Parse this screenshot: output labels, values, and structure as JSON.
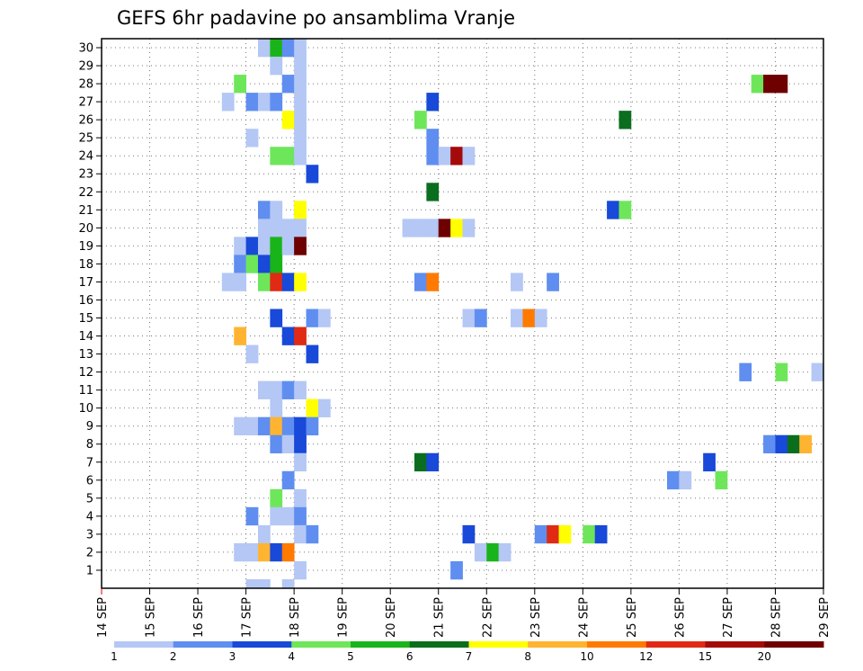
{
  "chart_data": {
    "type": "heatmap",
    "title": "GEFS 6hr padavine po ansamblima Vranje",
    "x_tick_labels": [
      "14 SEP",
      "15 SEP",
      "16 SEP",
      "17 SEP",
      "18 SEP",
      "19 SEP",
      "20 SEP",
      "21 SEP",
      "22 SEP",
      "23 SEP",
      "24 SEP",
      "25 SEP",
      "26 SEP",
      "27 SEP",
      "28 SEP",
      "29 SEP"
    ],
    "y_tick_labels": [
      "1",
      "2",
      "3",
      "4",
      "5",
      "6",
      "7",
      "8",
      "9",
      "10",
      "11",
      "12",
      "13",
      "14",
      "15",
      "16",
      "17",
      "18",
      "19",
      "20",
      "21",
      "22",
      "23",
      "24",
      "25",
      "26",
      "27",
      "28",
      "29",
      "30"
    ],
    "xlim_days": [
      14,
      29
    ],
    "ylim_members": [
      0,
      30
    ],
    "steps_per_day": 4,
    "grid": "dotted",
    "colorbar_labels": [
      "1",
      "2",
      "3",
      "4",
      "5",
      "6",
      "7",
      "8",
      "10",
      "12",
      "15",
      "20",
      ""
    ],
    "colorbar_colors": [
      "#b4c7f5",
      "#5f8ef0",
      "#1849d8",
      "#6ee65a",
      "#19b419",
      "#0a6e1e",
      "#ffff00",
      "#ffb431",
      "#ff7a00",
      "#e02a14",
      "#a50a0a",
      "#6e0000"
    ],
    "cells": [
      {
        "member": 30,
        "day": 17.25,
        "cls": 1
      },
      {
        "member": 30,
        "day": 17.5,
        "cls": 5
      },
      {
        "member": 30,
        "day": 17.75,
        "cls": 2
      },
      {
        "member": 30,
        "day": 18,
        "cls": 1
      },
      {
        "member": 29,
        "day": 17.5,
        "cls": 1
      },
      {
        "member": 29,
        "day": 18,
        "cls": 1
      },
      {
        "member": 28,
        "day": 16.75,
        "cls": 4
      },
      {
        "member": 28,
        "day": 17.75,
        "cls": 2
      },
      {
        "member": 28,
        "day": 18,
        "cls": 1
      },
      {
        "member": 28,
        "day": 27.5,
        "cls": 4
      },
      {
        "member": 28,
        "day": 27.75,
        "cls": 12
      },
      {
        "member": 28,
        "day": 28,
        "cls": 12
      },
      {
        "member": 27,
        "day": 16.5,
        "cls": 1
      },
      {
        "member": 27,
        "day": 17,
        "cls": 2
      },
      {
        "member": 27,
        "day": 17.25,
        "cls": 1
      },
      {
        "member": 27,
        "day": 17.5,
        "cls": 2
      },
      {
        "member": 27,
        "day": 18,
        "cls": 1
      },
      {
        "member": 27,
        "day": 20.75,
        "cls": 3
      },
      {
        "member": 26,
        "day": 17.75,
        "cls": 7
      },
      {
        "member": 26,
        "day": 18,
        "cls": 1
      },
      {
        "member": 26,
        "day": 20.5,
        "cls": 4
      },
      {
        "member": 26,
        "day": 24.75,
        "cls": 6
      },
      {
        "member": 25,
        "day": 17,
        "cls": 1
      },
      {
        "member": 25,
        "day": 18,
        "cls": 1
      },
      {
        "member": 25,
        "day": 20.75,
        "cls": 2
      },
      {
        "member": 24,
        "day": 17.5,
        "cls": 4
      },
      {
        "member": 24,
        "day": 17.75,
        "cls": 4
      },
      {
        "member": 24,
        "day": 18,
        "cls": 1
      },
      {
        "member": 24,
        "day": 20.75,
        "cls": 2
      },
      {
        "member": 24,
        "day": 21,
        "cls": 1
      },
      {
        "member": 24,
        "day": 21.25,
        "cls": 11
      },
      {
        "member": 24,
        "day": 21.5,
        "cls": 1
      },
      {
        "member": 23,
        "day": 18.25,
        "cls": 3
      },
      {
        "member": 22,
        "day": 20.75,
        "cls": 6
      },
      {
        "member": 21,
        "day": 17.25,
        "cls": 2
      },
      {
        "member": 21,
        "day": 17.5,
        "cls": 1
      },
      {
        "member": 21,
        "day": 18,
        "cls": 7
      },
      {
        "member": 21,
        "day": 24.5,
        "cls": 3
      },
      {
        "member": 21,
        "day": 24.75,
        "cls": 4
      },
      {
        "member": 20,
        "day": 17.25,
        "cls": 1
      },
      {
        "member": 20,
        "day": 17.5,
        "cls": 1
      },
      {
        "member": 20,
        "day": 17.75,
        "cls": 1
      },
      {
        "member": 20,
        "day": 18,
        "cls": 1
      },
      {
        "member": 20,
        "day": 20.25,
        "cls": 1
      },
      {
        "member": 20,
        "day": 20.5,
        "cls": 1
      },
      {
        "member": 20,
        "day": 20.75,
        "cls": 1
      },
      {
        "member": 20,
        "day": 21,
        "cls": 12
      },
      {
        "member": 20,
        "day": 21.25,
        "cls": 7
      },
      {
        "member": 20,
        "day": 21.5,
        "cls": 1
      },
      {
        "member": 19,
        "day": 16.75,
        "cls": 1
      },
      {
        "member": 19,
        "day": 17,
        "cls": 3
      },
      {
        "member": 19,
        "day": 17.25,
        "cls": 1
      },
      {
        "member": 19,
        "day": 17.5,
        "cls": 5
      },
      {
        "member": 19,
        "day": 17.75,
        "cls": 1
      },
      {
        "member": 19,
        "day": 18,
        "cls": 12
      },
      {
        "member": 18,
        "day": 16.75,
        "cls": 2
      },
      {
        "member": 18,
        "day": 17,
        "cls": 4
      },
      {
        "member": 18,
        "day": 17.25,
        "cls": 3
      },
      {
        "member": 18,
        "day": 17.5,
        "cls": 5
      },
      {
        "member": 17,
        "day": 16.5,
        "cls": 1
      },
      {
        "member": 17,
        "day": 16.75,
        "cls": 1
      },
      {
        "member": 17,
        "day": 17.25,
        "cls": 4
      },
      {
        "member": 17,
        "day": 17.5,
        "cls": 10
      },
      {
        "member": 17,
        "day": 17.75,
        "cls": 3
      },
      {
        "member": 17,
        "day": 18,
        "cls": 7
      },
      {
        "member": 17,
        "day": 20.5,
        "cls": 2
      },
      {
        "member": 17,
        "day": 20.75,
        "cls": 9
      },
      {
        "member": 17,
        "day": 22.5,
        "cls": 1
      },
      {
        "member": 17,
        "day": 23.25,
        "cls": 2
      },
      {
        "member": 15,
        "day": 17.5,
        "cls": 3
      },
      {
        "member": 15,
        "day": 18.25,
        "cls": 2
      },
      {
        "member": 15,
        "day": 18.5,
        "cls": 1
      },
      {
        "member": 15,
        "day": 21.5,
        "cls": 1
      },
      {
        "member": 15,
        "day": 21.75,
        "cls": 2
      },
      {
        "member": 15,
        "day": 22.5,
        "cls": 1
      },
      {
        "member": 15,
        "day": 22.75,
        "cls": 9
      },
      {
        "member": 15,
        "day": 23,
        "cls": 1
      },
      {
        "member": 14,
        "day": 16.75,
        "cls": 8
      },
      {
        "member": 14,
        "day": 17.75,
        "cls": 3
      },
      {
        "member": 14,
        "day": 18,
        "cls": 10
      },
      {
        "member": 13,
        "day": 17,
        "cls": 1
      },
      {
        "member": 13,
        "day": 18.25,
        "cls": 3
      },
      {
        "member": 12,
        "day": 27.25,
        "cls": 2
      },
      {
        "member": 12,
        "day": 28,
        "cls": 4
      },
      {
        "member": 12,
        "day": 28.75,
        "cls": 1
      },
      {
        "member": 11,
        "day": 17.25,
        "cls": 1
      },
      {
        "member": 11,
        "day": 17.5,
        "cls": 1
      },
      {
        "member": 11,
        "day": 17.75,
        "cls": 2
      },
      {
        "member": 11,
        "day": 18,
        "cls": 1
      },
      {
        "member": 10,
        "day": 17.5,
        "cls": 1
      },
      {
        "member": 10,
        "day": 18.25,
        "cls": 7
      },
      {
        "member": 10,
        "day": 18.5,
        "cls": 1
      },
      {
        "member": 9,
        "day": 16.75,
        "cls": 1
      },
      {
        "member": 9,
        "day": 17,
        "cls": 1
      },
      {
        "member": 9,
        "day": 17.25,
        "cls": 2
      },
      {
        "member": 9,
        "day": 17.5,
        "cls": 8
      },
      {
        "member": 9,
        "day": 17.75,
        "cls": 2
      },
      {
        "member": 9,
        "day": 18,
        "cls": 3
      },
      {
        "member": 9,
        "day": 18.25,
        "cls": 2
      },
      {
        "member": 8,
        "day": 17.5,
        "cls": 2
      },
      {
        "member": 8,
        "day": 17.75,
        "cls": 1
      },
      {
        "member": 8,
        "day": 18,
        "cls": 3
      },
      {
        "member": 8,
        "day": 27.75,
        "cls": 2
      },
      {
        "member": 8,
        "day": 28,
        "cls": 3
      },
      {
        "member": 8,
        "day": 28.25,
        "cls": 6
      },
      {
        "member": 8,
        "day": 28.5,
        "cls": 8
      },
      {
        "member": 7,
        "day": 18,
        "cls": 1
      },
      {
        "member": 7,
        "day": 20.5,
        "cls": 6
      },
      {
        "member": 7,
        "day": 20.75,
        "cls": 3
      },
      {
        "member": 7,
        "day": 26.5,
        "cls": 3
      },
      {
        "member": 6,
        "day": 17.75,
        "cls": 2
      },
      {
        "member": 6,
        "day": 25.75,
        "cls": 2
      },
      {
        "member": 6,
        "day": 26,
        "cls": 1
      },
      {
        "member": 6,
        "day": 26.75,
        "cls": 4
      },
      {
        "member": 5,
        "day": 17.5,
        "cls": 4
      },
      {
        "member": 5,
        "day": 18,
        "cls": 1
      },
      {
        "member": 4,
        "day": 17,
        "cls": 2
      },
      {
        "member": 4,
        "day": 17.5,
        "cls": 1
      },
      {
        "member": 4,
        "day": 17.75,
        "cls": 1
      },
      {
        "member": 4,
        "day": 18,
        "cls": 2
      },
      {
        "member": 3,
        "day": 17.25,
        "cls": 1
      },
      {
        "member": 3,
        "day": 18,
        "cls": 1
      },
      {
        "member": 3,
        "day": 18.25,
        "cls": 2
      },
      {
        "member": 3,
        "day": 21.5,
        "cls": 3
      },
      {
        "member": 3,
        "day": 23,
        "cls": 2
      },
      {
        "member": 3,
        "day": 23.25,
        "cls": 10
      },
      {
        "member": 3,
        "day": 23.5,
        "cls": 7
      },
      {
        "member": 3,
        "day": 24,
        "cls": 4
      },
      {
        "member": 3,
        "day": 24.25,
        "cls": 3
      },
      {
        "member": 2,
        "day": 16.75,
        "cls": 1
      },
      {
        "member": 2,
        "day": 17,
        "cls": 1
      },
      {
        "member": 2,
        "day": 17.25,
        "cls": 8
      },
      {
        "member": 2,
        "day": 17.5,
        "cls": 3
      },
      {
        "member": 2,
        "day": 17.75,
        "cls": 9
      },
      {
        "member": 2,
        "day": 21.75,
        "cls": 1
      },
      {
        "member": 2,
        "day": 22,
        "cls": 5
      },
      {
        "member": 2,
        "day": 22.25,
        "cls": 1
      },
      {
        "member": 1,
        "day": 18,
        "cls": 1
      },
      {
        "member": 1,
        "day": 21.25,
        "cls": 2
      },
      {
        "member": 0,
        "day": 17,
        "cls": 1
      },
      {
        "member": 0,
        "day": 17.25,
        "cls": 1
      },
      {
        "member": 0,
        "day": 17.75,
        "cls": 1
      }
    ]
  }
}
